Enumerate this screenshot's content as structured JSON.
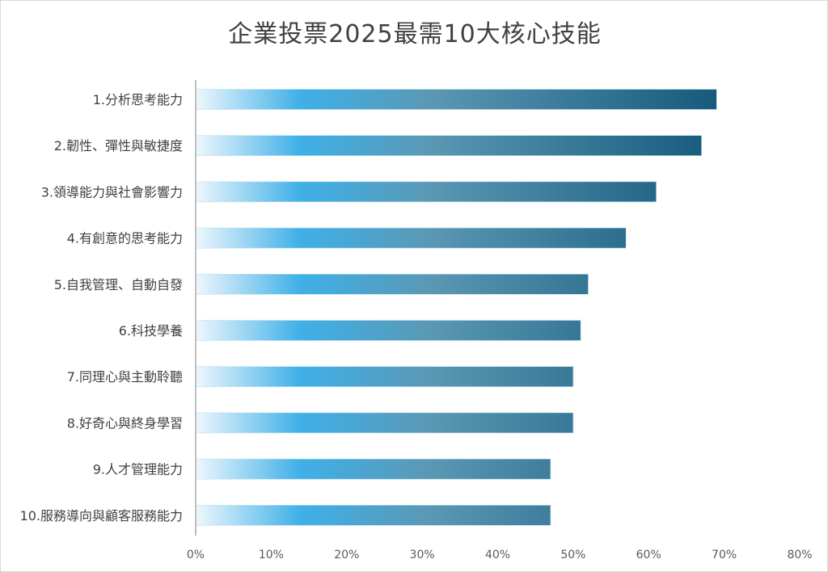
{
  "chart_data": {
    "type": "bar",
    "orientation": "horizontal",
    "title": "企業投票2025最需10大核心技能",
    "categories": [
      "1.分析思考能力",
      "2.韌性、彈性與敏捷度",
      "3.領導能力與社會影響力",
      "4.有創意的思考能力",
      "5.自我管理、自動自發",
      "6.科技學養",
      "7.同理心與主動聆聽",
      "8.好奇心與終身學習",
      "9.人才管理能力",
      "10.服務導向與顧客服務能力"
    ],
    "values": [
      0.69,
      0.67,
      0.61,
      0.57,
      0.52,
      0.51,
      0.5,
      0.5,
      0.47,
      0.47
    ],
    "xlim": [
      0,
      0.8
    ],
    "xticks": [
      0,
      0.1,
      0.2,
      0.3,
      0.4,
      0.5,
      0.6,
      0.7,
      0.8
    ],
    "xtick_labels": [
      "0%",
      "10%",
      "20%",
      "30%",
      "40%",
      "50%",
      "60%",
      "70%",
      "80%"
    ],
    "grid": false,
    "legend": "none",
    "bar_gradient": [
      "#eef7fd",
      "#3fb0e8",
      "#5a98b4",
      "#185a7c"
    ]
  }
}
